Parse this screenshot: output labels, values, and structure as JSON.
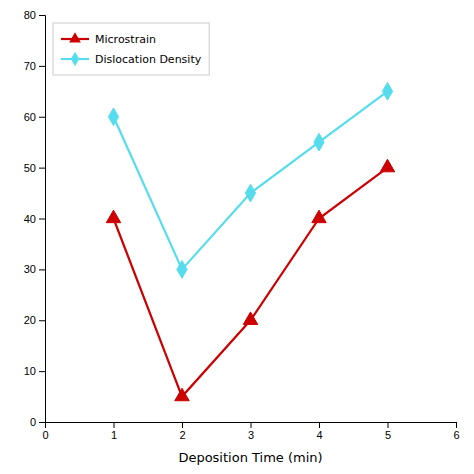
{
  "chart_data": {
    "type": "line",
    "xlabel": "Deposition Time (min)",
    "x": [
      1,
      2,
      3,
      4,
      5
    ],
    "series": [
      {
        "name": "Microstrain",
        "color": "#cc0000",
        "marker": "triangle",
        "values": [
          40,
          5,
          20,
          40,
          50
        ]
      },
      {
        "name": "Dislocation Density",
        "color": "#55ddee",
        "marker": "diamond",
        "values": [
          60,
          30,
          45,
          55,
          65
        ]
      }
    ],
    "xlim": [
      0,
      6
    ],
    "xticks": [
      0,
      1,
      2,
      3,
      4,
      5,
      6
    ],
    "ylim": [
      0,
      80
    ],
    "yticks": [
      0,
      10,
      20,
      30,
      40,
      50,
      60,
      70,
      80
    ],
    "legend": "upper left"
  }
}
